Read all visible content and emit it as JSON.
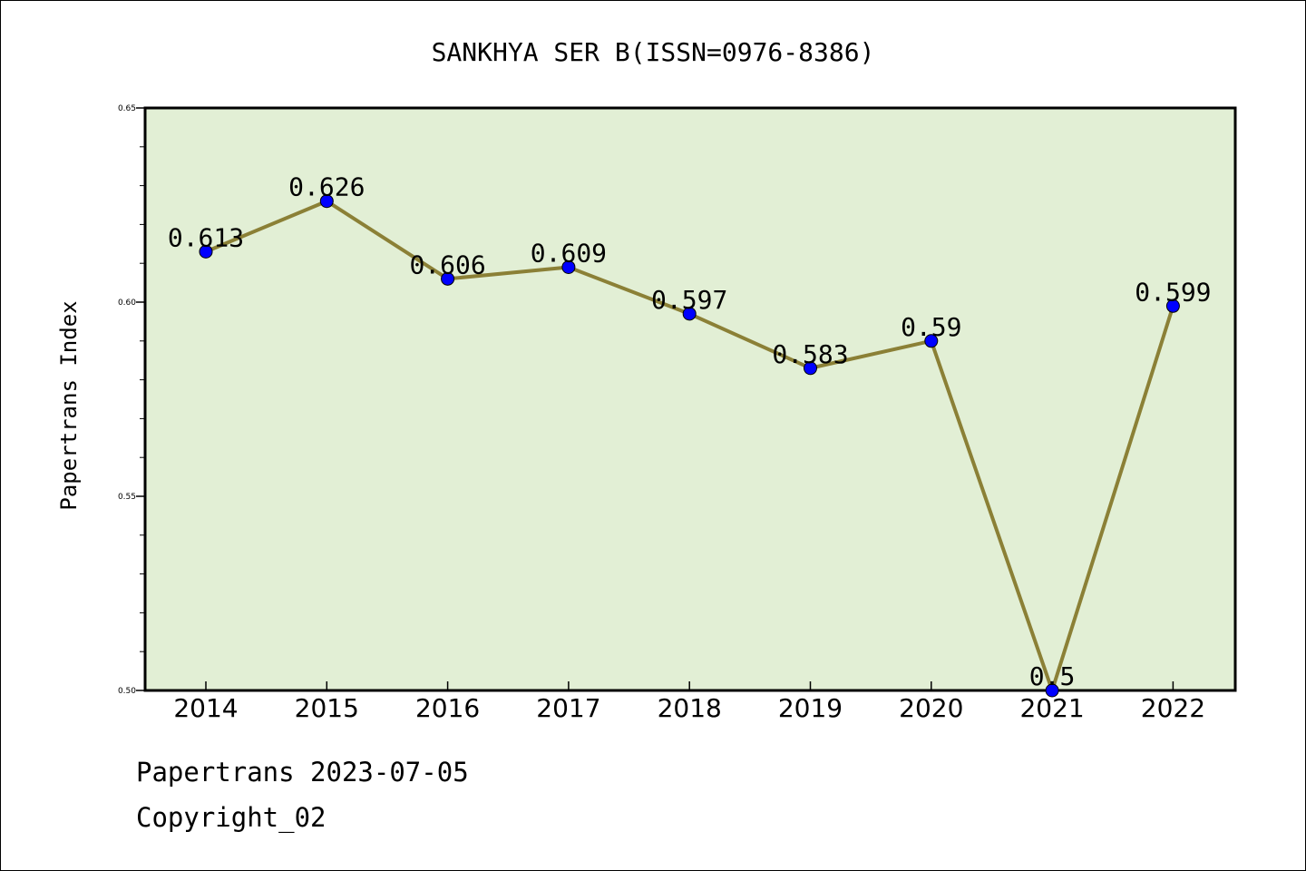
{
  "chart_data": {
    "type": "line",
    "title": "SANKHYA SER B(ISSN=0976-8386)",
    "xlabel": "",
    "ylabel": "Papertrans Index",
    "categories": [
      "2014",
      "2015",
      "2016",
      "2017",
      "2018",
      "2019",
      "2020",
      "2021",
      "2022"
    ],
    "values": [
      0.613,
      0.626,
      0.606,
      0.609,
      0.597,
      0.583,
      0.59,
      0.5,
      0.599
    ],
    "data_labels": [
      "0.613",
      "0.626",
      "0.606",
      "0.609",
      "0.597",
      "0.583",
      "0.59",
      "0.5",
      "0.599"
    ],
    "ylim": [
      0.5,
      0.65
    ],
    "yticks": [
      0.5,
      0.55,
      0.6,
      0.65
    ],
    "ytick_labels": [
      "0.50",
      "0.55",
      "0.60",
      "0.65"
    ],
    "minor_ytick_step": 0.01,
    "grid": false,
    "colors": {
      "plot_background": "#e2efd5",
      "line": "#8b8036",
      "marker": "#0000ff",
      "axes": "#000000"
    }
  },
  "footer": {
    "date_text": "Papertrans 2023-07-05",
    "copyright_text": "Copyright_02"
  }
}
